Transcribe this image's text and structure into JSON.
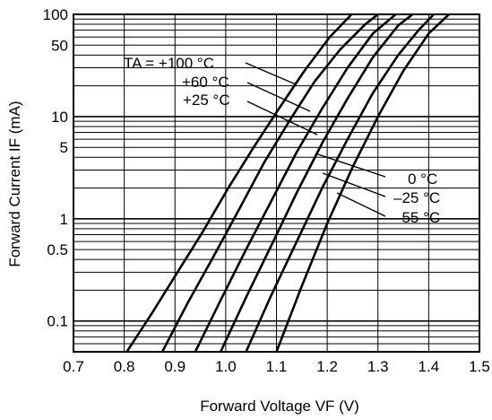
{
  "chart_data": {
    "type": "line",
    "title": "",
    "xlabel": "Forward Voltage  VF (V)",
    "ylabel": "Forward Current  IF (mA)",
    "xlim": [
      0.7,
      1.5
    ],
    "ylim": [
      0.05,
      100
    ],
    "yscale": "log",
    "grid": true,
    "xticks": [
      "0.7",
      "0.8",
      "0.9",
      "1.0",
      "1.1",
      "1.2",
      "1.3",
      "1.4",
      "1.5"
    ],
    "yticks": [
      "0.1",
      "0.5",
      "1",
      "5",
      "10",
      "50",
      "100"
    ],
    "series": [
      {
        "name": "TA = +100 °C",
        "x": [
          0.805,
          0.855,
          0.905,
          0.955,
          1.005,
          1.055,
          1.105,
          1.155,
          1.205,
          1.248
        ],
        "y": [
          0.05,
          0.12,
          0.3,
          0.75,
          2.0,
          5.0,
          12.0,
          28.0,
          60.0,
          100.0
        ]
      },
      {
        "name": "+60 °C",
        "x": [
          0.875,
          0.925,
          0.975,
          1.025,
          1.075,
          1.125,
          1.175,
          1.225,
          1.275,
          1.3
        ],
        "y": [
          0.05,
          0.15,
          0.42,
          1.2,
          3.5,
          9.0,
          22.0,
          45.0,
          80.0,
          100.0
        ]
      },
      {
        "name": "+25 °C",
        "x": [
          0.94,
          0.99,
          1.04,
          1.09,
          1.14,
          1.19,
          1.24,
          1.29,
          1.335
        ],
        "y": [
          0.05,
          0.16,
          0.5,
          1.5,
          4.5,
          12.0,
          30.0,
          65.0,
          100.0
        ]
      },
      {
        "name": "0 °C",
        "x": [
          0.99,
          1.04,
          1.09,
          1.14,
          1.19,
          1.24,
          1.29,
          1.34,
          1.368
        ],
        "y": [
          0.05,
          0.17,
          0.55,
          1.8,
          5.5,
          15.0,
          38.0,
          78.0,
          100.0
        ]
      },
      {
        "name": "–25 °C",
        "x": [
          1.04,
          1.09,
          1.14,
          1.19,
          1.24,
          1.29,
          1.34,
          1.38,
          1.41
        ],
        "y": [
          0.05,
          0.18,
          0.6,
          2.0,
          6.0,
          17.0,
          40.0,
          70.0,
          100.0
        ]
      },
      {
        "name": "–55 °C",
        "x": [
          1.1,
          1.15,
          1.2,
          1.25,
          1.3,
          1.35,
          1.4,
          1.44
        ],
        "y": [
          0.05,
          0.22,
          0.9,
          3.2,
          10.0,
          28.0,
          65.0,
          100.0
        ]
      }
    ]
  }
}
